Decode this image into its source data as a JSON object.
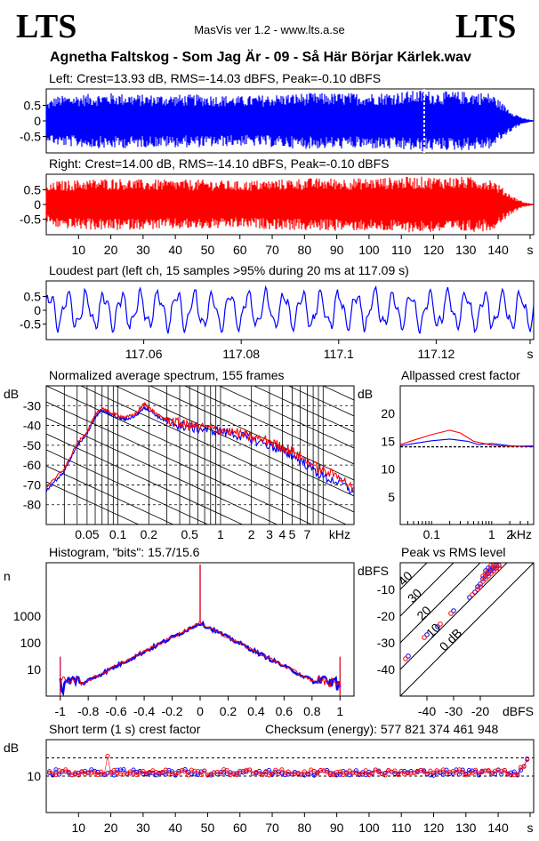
{
  "header": {
    "logo_left": "LTS",
    "logo_right": "LTS",
    "app_title": "MasVis ver 1.2 - www.lts.a.se",
    "file_name": "Agnetha Faltskog - Som Jag Är - 09 - Så Här Börjar Kärlek.wav"
  },
  "colors": {
    "left": "#0000ff",
    "right": "#ff0000",
    "grid": "#000000"
  },
  "chart_data": [
    {
      "type": "line",
      "id": "left-waveform",
      "title": "Left: Crest=13.93 dB, RMS=-14.03 dBFS, Peak=-0.10 dBFS",
      "ylim": [
        -1,
        1
      ],
      "yticks": [
        "0.5",
        "0",
        "-0.5"
      ],
      "xlim": [
        0,
        151
      ],
      "series": [
        {
          "color": "#0000ff",
          "envelope": [
            [
              0,
              0.6
            ],
            [
              3,
              0.8
            ],
            [
              10,
              0.85
            ],
            [
              20,
              0.9
            ],
            [
              30,
              0.85
            ],
            [
              40,
              0.85
            ],
            [
              50,
              0.85
            ],
            [
              60,
              0.8
            ],
            [
              70,
              0.85
            ],
            [
              80,
              0.9
            ],
            [
              90,
              0.9
            ],
            [
              100,
              0.9
            ],
            [
              110,
              0.95
            ],
            [
              117,
              1.0
            ],
            [
              120,
              0.95
            ],
            [
              130,
              0.95
            ],
            [
              138,
              0.9
            ],
            [
              141,
              0.6
            ],
            [
              145,
              0.25
            ],
            [
              148,
              0.08
            ],
            [
              151,
              0.02
            ]
          ]
        }
      ],
      "marker_x": 117.09
    },
    {
      "type": "line",
      "id": "right-waveform",
      "title": "Right: Crest=14.00 dB, RMS=-14.10 dBFS, Peak=-0.10 dBFS",
      "ylim": [
        -1,
        1
      ],
      "yticks": [
        "0.5",
        "0",
        "-0.5"
      ],
      "xlim": [
        0,
        151
      ],
      "xticks": [
        "10",
        "20",
        "30",
        "40",
        "50",
        "60",
        "70",
        "80",
        "90",
        "100",
        "110",
        "120",
        "130",
        "140",
        "s"
      ],
      "series": [
        {
          "color": "#ff0000",
          "envelope": [
            [
              0,
              0.6
            ],
            [
              3,
              0.8
            ],
            [
              10,
              0.85
            ],
            [
              20,
              0.9
            ],
            [
              30,
              0.85
            ],
            [
              40,
              0.85
            ],
            [
              50,
              0.85
            ],
            [
              60,
              0.8
            ],
            [
              70,
              0.85
            ],
            [
              80,
              0.9
            ],
            [
              90,
              0.9
            ],
            [
              100,
              0.9
            ],
            [
              110,
              0.95
            ],
            [
              120,
              0.95
            ],
            [
              130,
              0.95
            ],
            [
              138,
              0.9
            ],
            [
              141,
              0.6
            ],
            [
              145,
              0.25
            ],
            [
              148,
              0.08
            ],
            [
              151,
              0.02
            ]
          ]
        }
      ]
    },
    {
      "type": "line",
      "id": "loudest-part",
      "title": "Loudest part (left  ch, 15 samples >95% during 20 ms at 117.09 s)",
      "ylim": [
        -1,
        1
      ],
      "yticks": [
        "0.5",
        "0",
        "-0.5"
      ],
      "xlim": [
        117.04,
        117.14
      ],
      "xticks": [
        "117.06",
        "117.08",
        "117.1",
        "117.12",
        "s"
      ],
      "series": [
        {
          "color": "#0000ff"
        }
      ]
    },
    {
      "type": "line",
      "id": "spectrum",
      "title": "Normalized average spectrum, 155 frames",
      "ylabel": "dB",
      "xlabel": "kHz",
      "scale_x": "log",
      "xlim": [
        0.02,
        20
      ],
      "ylim": [
        -90,
        -20
      ],
      "yticks": [
        "-30",
        "-40",
        "-50",
        "-60",
        "-70",
        "-80"
      ],
      "xticks": [
        "0.05",
        "0.1",
        "0.2",
        "0.5",
        "1",
        "2",
        "3",
        "4",
        "5",
        "7"
      ],
      "series": [
        {
          "name": "left",
          "color": "#0000ff",
          "points": [
            [
              0.02,
              -73
            ],
            [
              0.03,
              -63
            ],
            [
              0.04,
              -50
            ],
            [
              0.05,
              -44
            ],
            [
              0.06,
              -36
            ],
            [
              0.07,
              -32
            ],
            [
              0.08,
              -34
            ],
            [
              0.1,
              -36
            ],
            [
              0.12,
              -37
            ],
            [
              0.15,
              -35
            ],
            [
              0.18,
              -31
            ],
            [
              0.2,
              -32
            ],
            [
              0.25,
              -36
            ],
            [
              0.3,
              -38
            ],
            [
              0.4,
              -40
            ],
            [
              0.5,
              -41
            ],
            [
              0.7,
              -42
            ],
            [
              1,
              -43
            ],
            [
              1.5,
              -45
            ],
            [
              2,
              -47
            ],
            [
              3,
              -50
            ],
            [
              4,
              -53
            ],
            [
              5,
              -55
            ],
            [
              7,
              -60
            ],
            [
              10,
              -66
            ],
            [
              15,
              -69
            ],
            [
              20,
              -74
            ]
          ]
        },
        {
          "name": "right",
          "color": "#ff0000",
          "points": [
            [
              0.02,
              -71
            ],
            [
              0.03,
              -62
            ],
            [
              0.04,
              -49
            ],
            [
              0.05,
              -43
            ],
            [
              0.06,
              -35
            ],
            [
              0.07,
              -31
            ],
            [
              0.08,
              -33
            ],
            [
              0.1,
              -35
            ],
            [
              0.12,
              -36
            ],
            [
              0.15,
              -34
            ],
            [
              0.18,
              -29
            ],
            [
              0.2,
              -31
            ],
            [
              0.25,
              -35
            ],
            [
              0.3,
              -37
            ],
            [
              0.4,
              -39
            ],
            [
              0.5,
              -40
            ],
            [
              0.7,
              -41
            ],
            [
              1,
              -42
            ],
            [
              1.5,
              -44
            ],
            [
              2,
              -46
            ],
            [
              3,
              -48
            ],
            [
              4,
              -51
            ],
            [
              5,
              -53
            ],
            [
              7,
              -58
            ],
            [
              10,
              -63
            ],
            [
              15,
              -66
            ],
            [
              20,
              -73
            ]
          ]
        }
      ]
    },
    {
      "type": "line",
      "id": "allpassed-crest",
      "title": "Allpassed crest factor",
      "ylabel": "dB",
      "xlabel": "kHz",
      "scale_x": "log",
      "xlim": [
        0.03,
        5
      ],
      "ylim": [
        0,
        25
      ],
      "yticks": [
        "20",
        "15",
        "10",
        "5"
      ],
      "xticks": [
        "0.1",
        "1",
        "2"
      ],
      "reference_y": 14,
      "series": [
        {
          "name": "left",
          "color": "#0000ff",
          "points": [
            [
              0.03,
              14.2
            ],
            [
              0.05,
              14.6
            ],
            [
              0.1,
              15.1
            ],
            [
              0.2,
              15.4
            ],
            [
              0.4,
              15.0
            ],
            [
              0.6,
              14.4
            ],
            [
              1,
              14.6
            ],
            [
              2,
              14.2
            ],
            [
              5,
              14.0
            ]
          ]
        },
        {
          "name": "right",
          "color": "#ff0000",
          "points": [
            [
              0.03,
              14.4
            ],
            [
              0.05,
              15.2
            ],
            [
              0.1,
              16.2
            ],
            [
              0.2,
              17.0
            ],
            [
              0.3,
              16.5
            ],
            [
              0.5,
              15.0
            ],
            [
              1,
              14.3
            ],
            [
              2,
              14.1
            ],
            [
              5,
              14.2
            ]
          ]
        }
      ]
    },
    {
      "type": "line",
      "id": "histogram",
      "title": "Histogram, \"bits\": 15.7/15.6",
      "ylabel": "n",
      "scale_y": "log",
      "xlim": [
        -1.1,
        1.1
      ],
      "ylim": [
        1,
        100000
      ],
      "yticks": [
        "1000",
        "100",
        "10"
      ],
      "xticks": [
        "-1",
        "-0.8",
        "-0.6",
        "-0.4",
        "-0.2",
        "0",
        "0.2",
        "0.4",
        "0.6",
        "0.8",
        "1"
      ],
      "series": [
        {
          "name": "left",
          "color": "#0000ff",
          "peak": 550,
          "edge": 3
        },
        {
          "name": "right",
          "color": "#ff0000",
          "peak": 560,
          "edge": 3
        }
      ]
    },
    {
      "type": "scatter",
      "id": "peak-vs-rms",
      "title": "Peak vs RMS level",
      "ylabel": "dBFS",
      "xlabel": "dBFS",
      "xlim": [
        -50,
        0
      ],
      "ylim": [
        -50,
        0
      ],
      "yticks": [
        "-10",
        "-20",
        "-30",
        "-40"
      ],
      "xticks": [
        "-40",
        "-30",
        "-20"
      ],
      "diagonal_labels": [
        "40",
        "30",
        "20",
        "10",
        "0 dB"
      ],
      "series": [
        {
          "name": "left",
          "color": "#0000ff",
          "points": [
            [
              -47,
              -35
            ],
            [
              -40,
              -27
            ],
            [
              -36,
              -24
            ],
            [
              -30,
              -18
            ],
            [
              -24,
              -13
            ],
            [
              -22,
              -11
            ],
            [
              -21,
              -9
            ],
            [
              -20,
              -8
            ],
            [
              -19,
              -6
            ],
            [
              -18,
              -5
            ],
            [
              -17,
              -4
            ],
            [
              -16,
              -3
            ],
            [
              -15,
              -2
            ],
            [
              -14,
              -1
            ],
            [
              -13,
              -1
            ],
            [
              -14,
              -2
            ],
            [
              -15,
              -3
            ],
            [
              -16,
              -2
            ],
            [
              -17,
              -2
            ],
            [
              -18,
              -3
            ]
          ]
        },
        {
          "name": "right",
          "color": "#ff0000",
          "points": [
            [
              -48,
              -36
            ],
            [
              -41,
              -28
            ],
            [
              -35,
              -23
            ],
            [
              -31,
              -19
            ],
            [
              -23,
              -12
            ],
            [
              -21,
              -10
            ],
            [
              -20,
              -9
            ],
            [
              -19,
              -7
            ],
            [
              -18,
              -6
            ],
            [
              -17,
              -5
            ],
            [
              -16,
              -4
            ],
            [
              -15,
              -3
            ],
            [
              -14,
              -2
            ],
            [
              -13,
              -1
            ],
            [
              -13,
              -2
            ],
            [
              -15,
              -1
            ],
            [
              -16,
              -1
            ],
            [
              -17,
              -3
            ],
            [
              -18,
              -4
            ],
            [
              -19,
              -5
            ]
          ]
        }
      ]
    },
    {
      "type": "scatter",
      "id": "short-term-crest",
      "title": "Short term (1 s) crest factor",
      "annotation": "Checksum (energy):   577 821 374 461 948",
      "ylabel": "dB",
      "xlim": [
        0,
        151
      ],
      "ylim": [
        0,
        20
      ],
      "yticks": [
        "10"
      ],
      "reference_ys": [
        10,
        15
      ],
      "xticks": [
        "10",
        "20",
        "30",
        "40",
        "50",
        "60",
        "70",
        "80",
        "90",
        "100",
        "110",
        "120",
        "130",
        "140",
        "s"
      ],
      "series": [
        {
          "name": "left",
          "color": "#0000ff"
        },
        {
          "name": "right",
          "color": "#ff0000"
        }
      ]
    }
  ]
}
